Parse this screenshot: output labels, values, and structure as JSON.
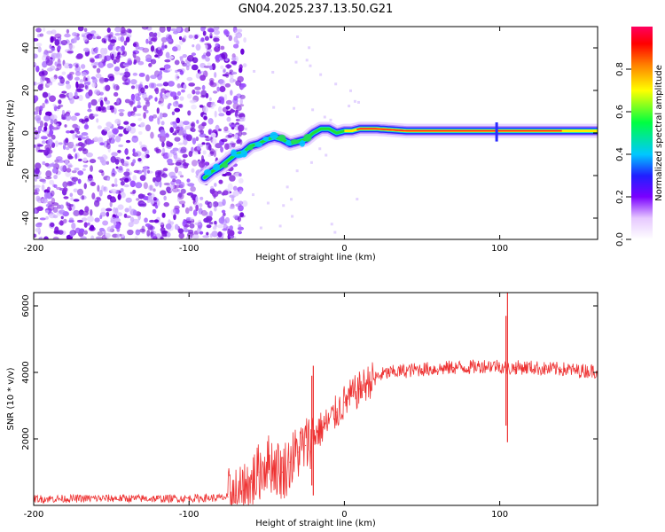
{
  "title": "GN04.2025.237.13.50.G21",
  "chart_data": [
    {
      "type": "heatmap",
      "name": "spectrogram",
      "xlabel": "Height of straight line (km)",
      "ylabel": "Frequency (Hz)",
      "xlim": [
        -200,
        163
      ],
      "ylim": [
        -50,
        50
      ],
      "xticks": [
        -200,
        -100,
        0,
        100
      ],
      "xtick_labels": [
        "-200",
        "-100",
        "0",
        "100"
      ],
      "yticks": [
        -40,
        -20,
        0,
        20,
        40
      ],
      "ytick_labels": [
        "-40",
        "-20",
        "0",
        "20",
        "40"
      ],
      "colorbar": {
        "label": "Normalized spectral amplitude",
        "range": [
          0,
          1
        ],
        "ticks": [
          0.0,
          0.2,
          0.4,
          0.6,
          0.8
        ],
        "tick_labels": [
          "0.0",
          "0.2",
          "0.4",
          "0.6",
          "0.8"
        ]
      },
      "noise_region_x": [
        -200,
        -72
      ],
      "ridge": {
        "x": [
          -90,
          -85,
          -80,
          -75,
          -70,
          -65,
          -60,
          -55,
          -50,
          -45,
          -40,
          -35,
          -30,
          -25,
          -20,
          -15,
          -10,
          -5,
          0,
          5,
          10,
          20,
          40,
          60,
          80,
          100,
          120,
          140,
          163
        ],
        "y": [
          -21,
          -18,
          -16,
          -13,
          -10,
          -9,
          -6,
          -5,
          -3,
          -2,
          -3,
          -5,
          -4,
          -3,
          0,
          2,
          2,
          0,
          1,
          1,
          2,
          2,
          1,
          1,
          1,
          1,
          1,
          1,
          1
        ]
      }
    },
    {
      "type": "line",
      "name": "snr",
      "xlabel": "Height of straight line (km)",
      "ylabel": "SNR (10 * v/v)",
      "xlim": [
        -200,
        163
      ],
      "ylim": [
        0,
        6400
      ],
      "xticks": [
        -200,
        -100,
        0,
        100
      ],
      "xtick_labels": [
        "-200",
        "-100",
        "0",
        "100"
      ],
      "yticks": [
        2000,
        4000,
        6000
      ],
      "ytick_labels": [
        "2000",
        "4000",
        "6000"
      ],
      "color": "#ee3333",
      "x": [
        -200,
        -180,
        -160,
        -140,
        -120,
        -100,
        -90,
        -80,
        -75,
        -70,
        -65,
        -60,
        -55,
        -50,
        -45,
        -40,
        -35,
        -30,
        -25,
        -20,
        -15,
        -10,
        -5,
        0,
        5,
        10,
        15,
        20,
        25,
        30,
        40,
        50,
        60,
        70,
        80,
        90,
        100,
        105,
        110,
        120,
        130,
        140,
        150,
        163
      ],
      "y": [
        200,
        200,
        210,
        210,
        200,
        210,
        220,
        230,
        250,
        300,
        450,
        700,
        1000,
        1300,
        1200,
        1000,
        1300,
        1600,
        1800,
        2100,
        2300,
        2500,
        2800,
        3100,
        3300,
        3500,
        3700,
        3850,
        3950,
        4000,
        4050,
        4100,
        4100,
        4150,
        4150,
        4200,
        4200,
        4100,
        4150,
        4150,
        4100,
        4100,
        4050,
        4050
      ],
      "spikes": [
        {
          "x": -20,
          "y_min": 300,
          "y_max": 4200
        },
        {
          "x": -21,
          "y_min": 600,
          "y_max": 3900
        },
        {
          "x": 104,
          "y_min": 2400,
          "y_max": 5700
        },
        {
          "x": 105,
          "y_min": 1900,
          "y_max": 6400
        }
      ]
    }
  ]
}
